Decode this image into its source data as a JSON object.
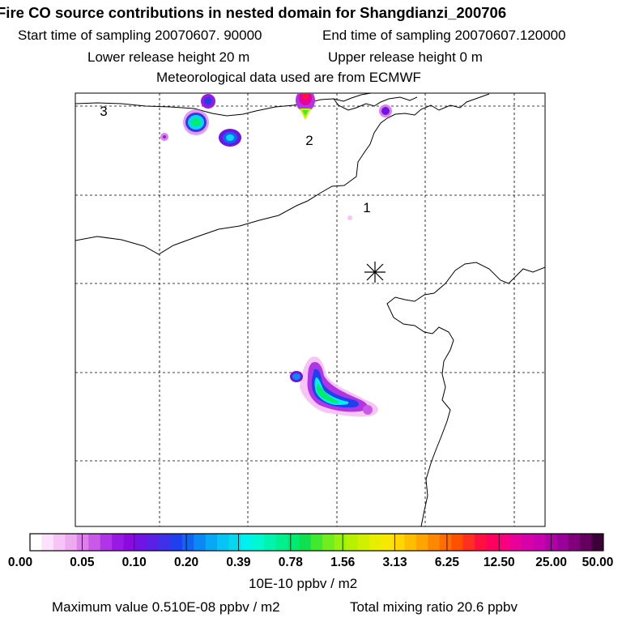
{
  "header": {
    "title": "Fire CO source contributions in nested domain for Shangdianzi_200706",
    "start_time": "Start time of sampling 20070607. 90000",
    "end_time": "End time of sampling 20070607.120000",
    "lower_release": "Lower release height   20 m",
    "upper_release": "Upper release height    0 m",
    "met_data": "Meteorological data used are from ECMWF"
  },
  "map": {
    "region_labels": [
      "1",
      "2",
      "3"
    ],
    "station_marker": "station-asterisk"
  },
  "colorbar": {
    "tick_labels": [
      "0.00",
      "0.05",
      "0.10",
      "0.20",
      "0.39",
      "0.78",
      "1.56",
      "3.13",
      "6.25",
      "12.50",
      "25.00",
      "50.00"
    ],
    "colors": [
      "#ffffff",
      "#fde0fb",
      "#f7c5f5",
      "#eeaaf0",
      "#dd80ec",
      "#c95ae8",
      "#b035e6",
      "#9a1ae4",
      "#8a0ae0",
      "#6e14e4",
      "#5a20e6",
      "#3f30ea",
      "#2040f0",
      "#1064f2",
      "#0a88f4",
      "#08a8f6",
      "#06c4f4",
      "#04d8ee",
      "#00f0ee",
      "#00f8d0",
      "#00f4b0",
      "#00f090",
      "#00ec70",
      "#10e050",
      "#40e830",
      "#70ec20",
      "#98f010",
      "#b8f000",
      "#d0f000",
      "#e8ee00",
      "#f8e800",
      "#ffd600",
      "#ffbe00",
      "#ffa400",
      "#ff8800",
      "#ff6c00",
      "#ff5000",
      "#ff3020",
      "#ff1040",
      "#ff0060",
      "#f80080",
      "#e8009a",
      "#d800a8",
      "#c800b0",
      "#b000a8",
      "#9a009a",
      "#80007c",
      "#660060",
      "#3c0038"
    ],
    "unit_label": "10E-10 ppbv / m2"
  },
  "footer": {
    "max_value": "Maximum value  0.510E-08 ppbv / m2",
    "total_mixing": "Total mixing ratio      20.6 ppbv"
  }
}
